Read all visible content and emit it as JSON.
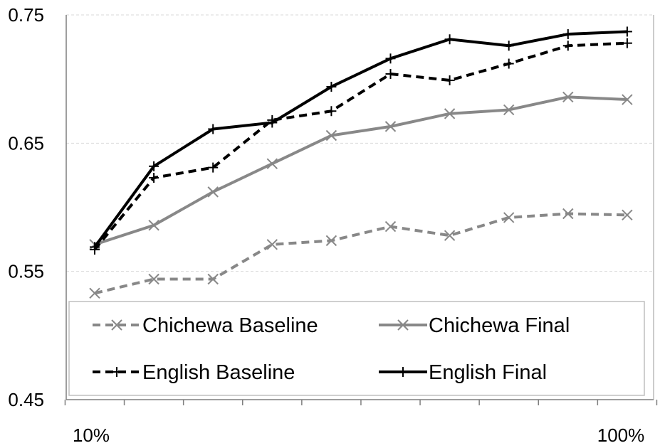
{
  "chart_data": {
    "type": "line",
    "title": "",
    "xlabel": "",
    "ylabel": "",
    "ylim": [
      0.45,
      0.75
    ],
    "yticks": [
      "0.45",
      "0.55",
      "0.65",
      "0.75"
    ],
    "ytick_values": [
      0.45,
      0.55,
      0.65,
      0.75
    ],
    "xtick_labels": {
      "first": "10%",
      "last": "100%"
    },
    "x": [
      1,
      2,
      3,
      4,
      5,
      6,
      7,
      8,
      9,
      10
    ],
    "grid": "horizontal dashed",
    "legend_position": "bottom",
    "series": [
      {
        "name": "Chichewa Baseline",
        "color": "#888888",
        "style": "dashed",
        "marker": "x",
        "values": [
          0.533,
          0.544,
          0.544,
          0.571,
          0.574,
          0.585,
          0.578,
          0.592,
          0.595,
          0.594
        ]
      },
      {
        "name": "Chichewa Final",
        "color": "#888888",
        "style": "solid",
        "marker": "x",
        "values": [
          0.571,
          0.586,
          0.612,
          0.634,
          0.656,
          0.663,
          0.673,
          0.676,
          0.686,
          0.684
        ]
      },
      {
        "name": "English Baseline",
        "color": "#000000",
        "style": "dashed",
        "marker": "+",
        "values": [
          0.567,
          0.623,
          0.631,
          0.668,
          0.675,
          0.704,
          0.699,
          0.712,
          0.726,
          0.728
        ]
      },
      {
        "name": "English Final",
        "color": "#000000",
        "style": "solid",
        "marker": "+",
        "values": [
          0.569,
          0.632,
          0.661,
          0.666,
          0.694,
          0.716,
          0.731,
          0.726,
          0.735,
          0.737
        ]
      }
    ]
  }
}
